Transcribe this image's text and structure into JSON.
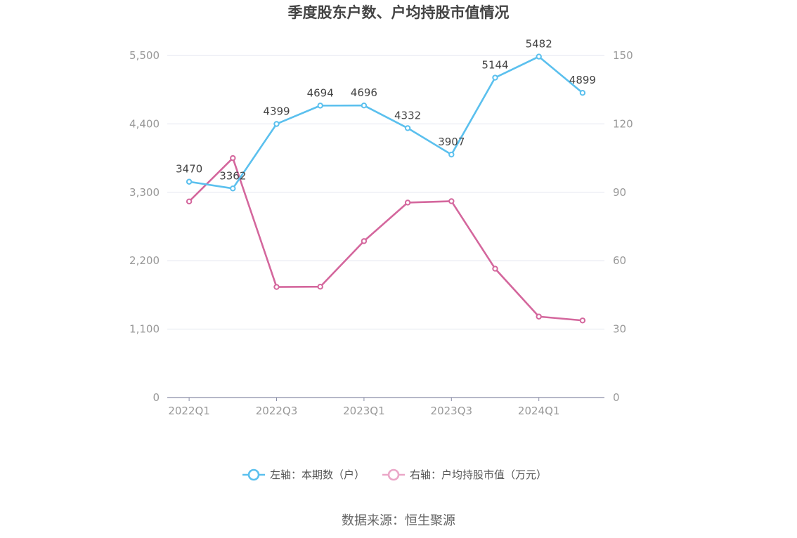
{
  "chart_data": {
    "type": "line",
    "title": "季度股东户数、户均持股市值情况",
    "categories": [
      "2022Q1",
      "2022Q2",
      "2022Q3",
      "2022Q4",
      "2023Q1",
      "2023Q2",
      "2023Q3",
      "2023Q4",
      "2024Q1",
      "2024Q2"
    ],
    "x_tick_labels": [
      "2022Q1",
      "2022Q3",
      "2023Q1",
      "2023Q3",
      "2024Q1"
    ],
    "left_axis": {
      "ylim": [
        0,
        5500
      ],
      "ticks": [
        "0",
        "1,100",
        "2,200",
        "3,300",
        "4,400",
        "5,500"
      ]
    },
    "right_axis": {
      "ylim": [
        0,
        150
      ],
      "ticks": [
        "0",
        "30",
        "60",
        "90",
        "120",
        "150"
      ]
    },
    "series": [
      {
        "name": "左轴：本期数（户）",
        "axis": "left",
        "color": "#5bc0ee",
        "values": [
          3470,
          3362,
          4399,
          4694,
          4696,
          4332,
          3907,
          5144,
          5482,
          4899
        ],
        "labels": [
          "3470",
          "3362",
          "4399",
          "4694",
          "4696",
          "4332",
          "3907",
          "5144",
          "5482",
          "4899"
        ]
      },
      {
        "name": "右轴：户均持股市值（万元）",
        "axis": "right",
        "color": "#d4679d",
        "legend_color": "#eba7c8",
        "values": [
          86,
          105,
          48.5,
          48.6,
          68.6,
          85.5,
          86.1,
          56.5,
          35.5,
          33.8
        ]
      }
    ],
    "grid": true,
    "legend_position": "bottom"
  },
  "source": "数据来源：恒生聚源"
}
